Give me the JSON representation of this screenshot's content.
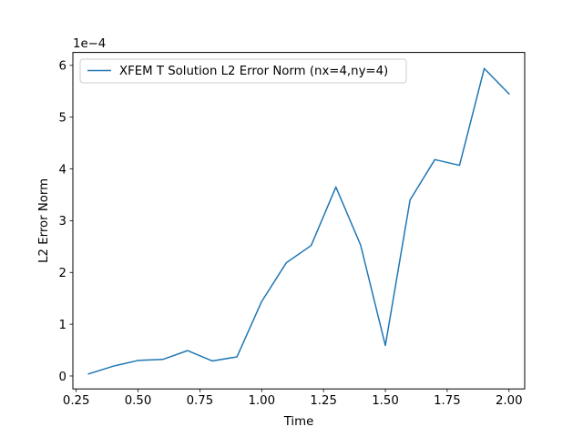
{
  "chart_data": {
    "type": "line",
    "xlabel": "Time",
    "ylabel": "L2 Error Norm",
    "y_scale_label": "1e−4",
    "y_scale": 0.0001,
    "xlim": [
      0.2365,
      2.0635
    ],
    "ylim": [
      -0.25,
      6.25
    ],
    "x_ticks": [
      0.25,
      0.5,
      0.75,
      1.0,
      1.25,
      1.5,
      1.75,
      2.0
    ],
    "x_tick_labels": [
      "0.25",
      "0.50",
      "0.75",
      "1.00",
      "1.25",
      "1.50",
      "1.75",
      "2.00"
    ],
    "y_ticks": [
      0,
      1,
      2,
      3,
      4,
      5,
      6
    ],
    "y_tick_labels": [
      "0",
      "1",
      "2",
      "3",
      "4",
      "5",
      "6"
    ],
    "grid": false,
    "legend_position": "top-left",
    "series": [
      {
        "name": "XFEM T Solution L2 Error Norm (nx=4,ny=4)",
        "color": "#1f77b4",
        "x": [
          0.3,
          0.4,
          0.5,
          0.6,
          0.7,
          0.8,
          0.9,
          1.0,
          1.1,
          1.2,
          1.3,
          1.4,
          1.5,
          1.6,
          1.7,
          1.8,
          1.9,
          2.0
        ],
        "y": [
          0.04,
          0.19,
          0.3,
          0.32,
          0.49,
          0.29,
          0.37,
          1.44,
          2.19,
          2.52,
          3.65,
          2.53,
          0.59,
          3.4,
          4.18,
          4.07,
          5.94,
          5.45
        ]
      }
    ]
  }
}
